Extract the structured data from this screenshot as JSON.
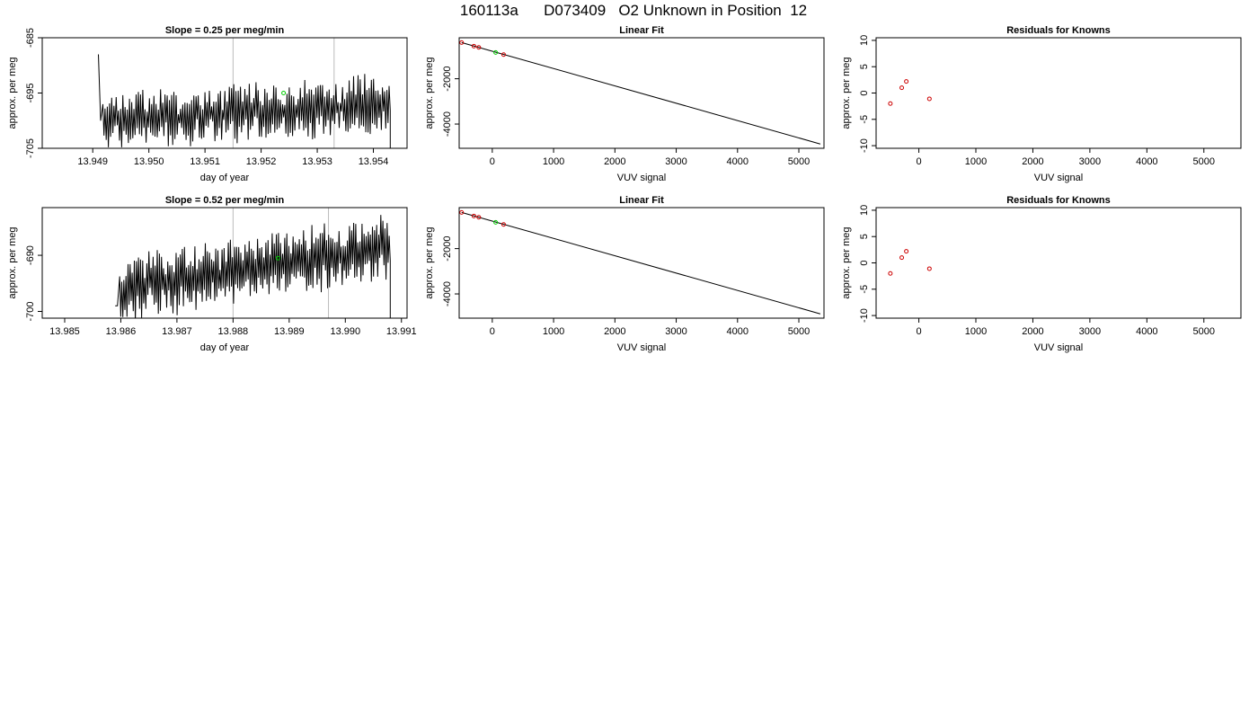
{
  "page": {
    "title": "160113a      D073409   O2 Unknown in Position  12"
  },
  "chart_data": [
    {
      "type": "line",
      "title": "Slope =  0.25  per meg/min",
      "xlabel": "day of year",
      "ylabel": "approx. per meg",
      "xlim": [
        13.9481,
        13.9546
      ],
      "ylim": [
        -705,
        -685
      ],
      "xticks": [
        13.949,
        13.95,
        13.951,
        13.952,
        13.953,
        13.954
      ],
      "xtick_labels": [
        "13.949",
        "13.950",
        "13.951",
        "13.952",
        "13.953",
        "13.954"
      ],
      "yticks": [
        -705,
        -695,
        -685
      ],
      "ytick_labels": [
        "-705",
        "-695",
        "-685"
      ],
      "series_start": 13.9491,
      "series_end": 13.9543,
      "series_base": -700,
      "series_jump_start": -688,
      "series_trend": [
        -700.0,
        -697.0
      ],
      "amplitude": 4.2,
      "vlines": [
        13.9515,
        13.9533
      ],
      "marker": {
        "x": 13.9524,
        "y": -695.0,
        "color": "#00cc00"
      },
      "line_color": "#000000",
      "vline_color": "#bbbbbb",
      "seed": 7
    },
    {
      "type": "scatter",
      "title": "Linear Fit",
      "xlabel": "VUV signal",
      "ylabel": "approx. per meg",
      "xlim": [
        -540,
        5410
      ],
      "ylim": [
        -5070,
        -190
      ],
      "xticks": [
        0,
        1000,
        2000,
        3000,
        4000,
        5000
      ],
      "xtick_labels": [
        "0",
        "1000",
        "2000",
        "3000",
        "4000",
        "5000"
      ],
      "yticks": [
        -4000,
        -2000
      ],
      "ytick_labels": [
        "-4000",
        "-2000"
      ],
      "fit_line": {
        "x": [
          -500,
          5350
        ],
        "y": [
          -402,
          -4880
        ]
      },
      "knowns": {
        "x": [
          -500,
          -300,
          -220,
          185
        ],
        "y": [
          -405,
          -560,
          -615,
          -934
        ]
      },
      "unknown": {
        "x": 55,
        "y": -838
      },
      "known_color": "#cc0000",
      "unknown_color": "#00cc00",
      "line_color": "#000000"
    },
    {
      "type": "scatter",
      "title": "Residuals for Knowns",
      "xlabel": "VUV signal",
      "ylabel": "approx. per meg",
      "xlim": [
        -750,
        5650
      ],
      "ylim": [
        -10.5,
        10.5
      ],
      "xticks": [
        0,
        1000,
        2000,
        3000,
        4000,
        5000
      ],
      "xtick_labels": [
        "0",
        "1000",
        "2000",
        "3000",
        "4000",
        "5000"
      ],
      "yticks": [
        -10,
        -5,
        0,
        5,
        10
      ],
      "ytick_labels": [
        "-10",
        "-5",
        "0",
        "5",
        "10"
      ],
      "points": {
        "x": [
          -500,
          -300,
          -220,
          185
        ],
        "y": [
          -2.0,
          1.0,
          2.2,
          -1.1
        ]
      },
      "point_color": "#cc0000"
    },
    {
      "type": "line",
      "title": "Slope =  0.52  per meg/min",
      "xlabel": "day of year",
      "ylabel": "approx. per meg",
      "xlim": [
        13.9846,
        13.9911
      ],
      "ylim": [
        -701.2,
        -681.5
      ],
      "xticks": [
        13.985,
        13.986,
        13.987,
        13.988,
        13.989,
        13.99,
        13.991
      ],
      "xtick_labels": [
        "13.985",
        "13.986",
        "13.987",
        "13.988",
        "13.989",
        "13.990",
        "13.991"
      ],
      "yticks": [
        -700,
        -690
      ],
      "ytick_labels": [
        "-700",
        "-690"
      ],
      "series_start": 13.9859,
      "series_end": 13.9908,
      "series_base": -699,
      "series_jump_start": -699,
      "series_trend": [
        -696.0,
        -688.5
      ],
      "amplitude": 4.5,
      "vlines": [
        13.988,
        13.9897
      ],
      "marker": {
        "x": 13.9888,
        "y": -690.5,
        "color": "#00cc00"
      },
      "line_color": "#000000",
      "vline_color": "#bbbbbb",
      "seed": 13
    },
    {
      "type": "scatter",
      "title": "Linear Fit",
      "xlabel": "VUV signal",
      "ylabel": "approx. per meg",
      "xlim": [
        -540,
        5410
      ],
      "ylim": [
        -5070,
        -190
      ],
      "xticks": [
        0,
        1000,
        2000,
        3000,
        4000,
        5000
      ],
      "xtick_labels": [
        "0",
        "1000",
        "2000",
        "3000",
        "4000",
        "5000"
      ],
      "yticks": [
        -4000,
        -2000
      ],
      "ytick_labels": [
        "-4000",
        "-2000"
      ],
      "fit_line": {
        "x": [
          -500,
          5350
        ],
        "y": [
          -402,
          -4880
        ]
      },
      "knowns": {
        "x": [
          -500,
          -300,
          -220,
          185
        ],
        "y": [
          -405,
          -560,
          -615,
          -934
        ]
      },
      "unknown": {
        "x": 55,
        "y": -838
      },
      "known_color": "#cc0000",
      "unknown_color": "#00cc00",
      "line_color": "#000000"
    },
    {
      "type": "scatter",
      "title": "Residuals for Knowns",
      "xlabel": "VUV signal",
      "ylabel": "approx. per meg",
      "xlim": [
        -750,
        5650
      ],
      "ylim": [
        -10.5,
        10.5
      ],
      "xticks": [
        0,
        1000,
        2000,
        3000,
        4000,
        5000
      ],
      "xtick_labels": [
        "0",
        "1000",
        "2000",
        "3000",
        "4000",
        "5000"
      ],
      "yticks": [
        -10,
        -5,
        0,
        5,
        10
      ],
      "ytick_labels": [
        "-10",
        "-5",
        "0",
        "5",
        "10"
      ],
      "points": {
        "x": [
          -500,
          -300,
          -220,
          185
        ],
        "y": [
          -2.0,
          1.0,
          2.2,
          -1.1
        ]
      },
      "point_color": "#cc0000"
    }
  ]
}
